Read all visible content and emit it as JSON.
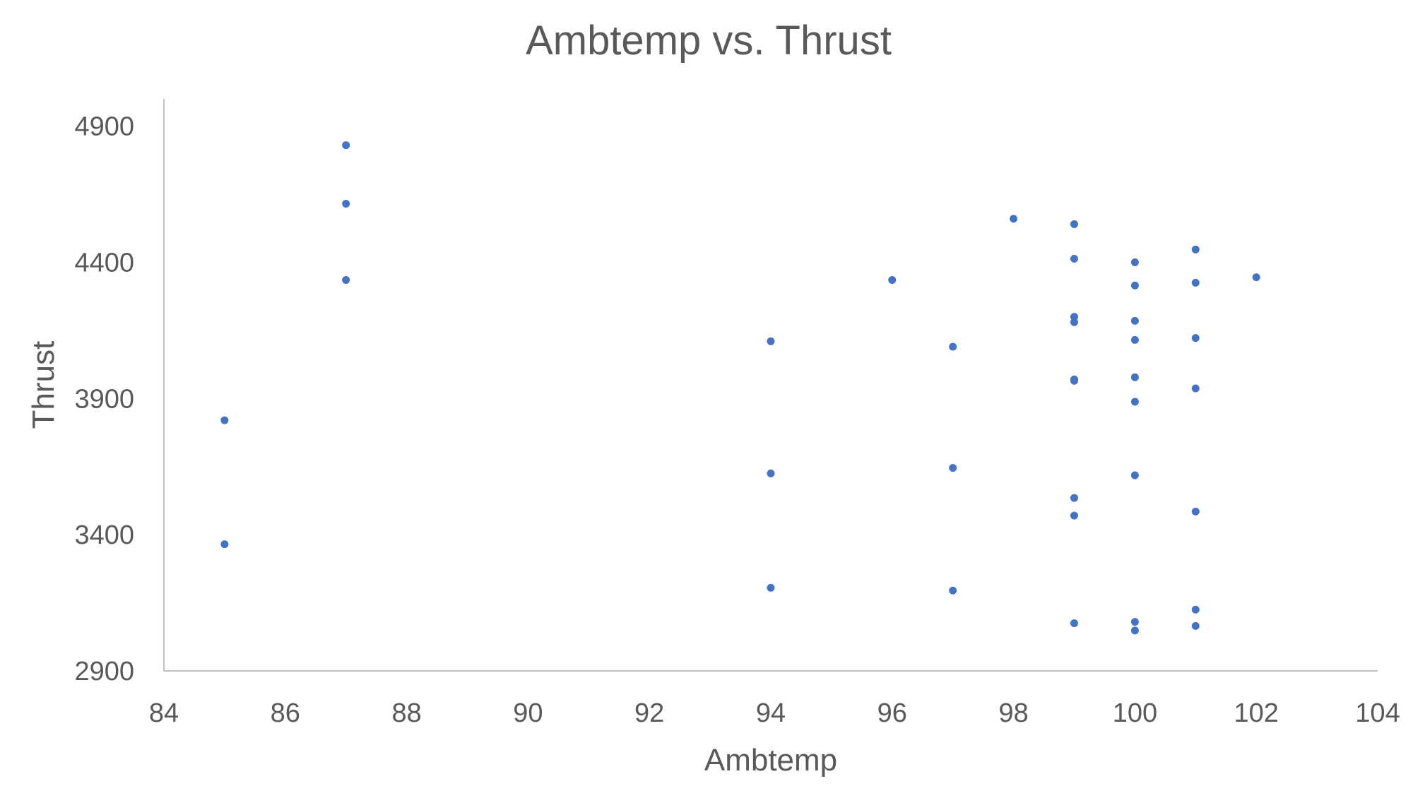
{
  "chart_data": {
    "type": "scatter",
    "title": "Ambtemp vs. Thrust",
    "xlabel": "Ambtemp",
    "ylabel": "Thrust",
    "xlim": [
      84,
      104
    ],
    "ylim": [
      2900,
      5000
    ],
    "x_ticks": [
      "84",
      "86",
      "88",
      "90",
      "92",
      "94",
      "96",
      "98",
      "100",
      "102",
      "104"
    ],
    "y_ticks": [
      "2900",
      "3400",
      "3900",
      "4400",
      "4900"
    ],
    "grid": false,
    "legend": "none",
    "marker_color": "#4472C4",
    "series": [
      {
        "points": [
          {
            "x": 85,
            "y": 3820
          },
          {
            "x": 85,
            "y": 3365
          },
          {
            "x": 87,
            "y": 4830
          },
          {
            "x": 87,
            "y": 4615
          },
          {
            "x": 87,
            "y": 4335
          },
          {
            "x": 94,
            "y": 4110
          },
          {
            "x": 94,
            "y": 3625
          },
          {
            "x": 94,
            "y": 3205
          },
          {
            "x": 96,
            "y": 4335
          },
          {
            "x": 97,
            "y": 4090
          },
          {
            "x": 97,
            "y": 3645
          },
          {
            "x": 97,
            "y": 3195
          },
          {
            "x": 98,
            "y": 4560
          },
          {
            "x": 99,
            "y": 4540
          },
          {
            "x": 99,
            "y": 4413
          },
          {
            "x": 99,
            "y": 4200
          },
          {
            "x": 99,
            "y": 4180
          },
          {
            "x": 99,
            "y": 3970
          },
          {
            "x": 99,
            "y": 3965
          },
          {
            "x": 99,
            "y": 3535
          },
          {
            "x": 99,
            "y": 3470
          },
          {
            "x": 99,
            "y": 3075
          },
          {
            "x": 100,
            "y": 4400
          },
          {
            "x": 100,
            "y": 4315
          },
          {
            "x": 100,
            "y": 4185
          },
          {
            "x": 100,
            "y": 4115
          },
          {
            "x": 100,
            "y": 3978
          },
          {
            "x": 100,
            "y": 3888
          },
          {
            "x": 100,
            "y": 3618
          },
          {
            "x": 100,
            "y": 3080
          },
          {
            "x": 100,
            "y": 3048
          },
          {
            "x": 101,
            "y": 4447
          },
          {
            "x": 101,
            "y": 4325
          },
          {
            "x": 101,
            "y": 4122
          },
          {
            "x": 101,
            "y": 3937
          },
          {
            "x": 101,
            "y": 3485
          },
          {
            "x": 101,
            "y": 3125
          },
          {
            "x": 101,
            "y": 3065
          },
          {
            "x": 102,
            "y": 4345
          }
        ]
      }
    ]
  }
}
